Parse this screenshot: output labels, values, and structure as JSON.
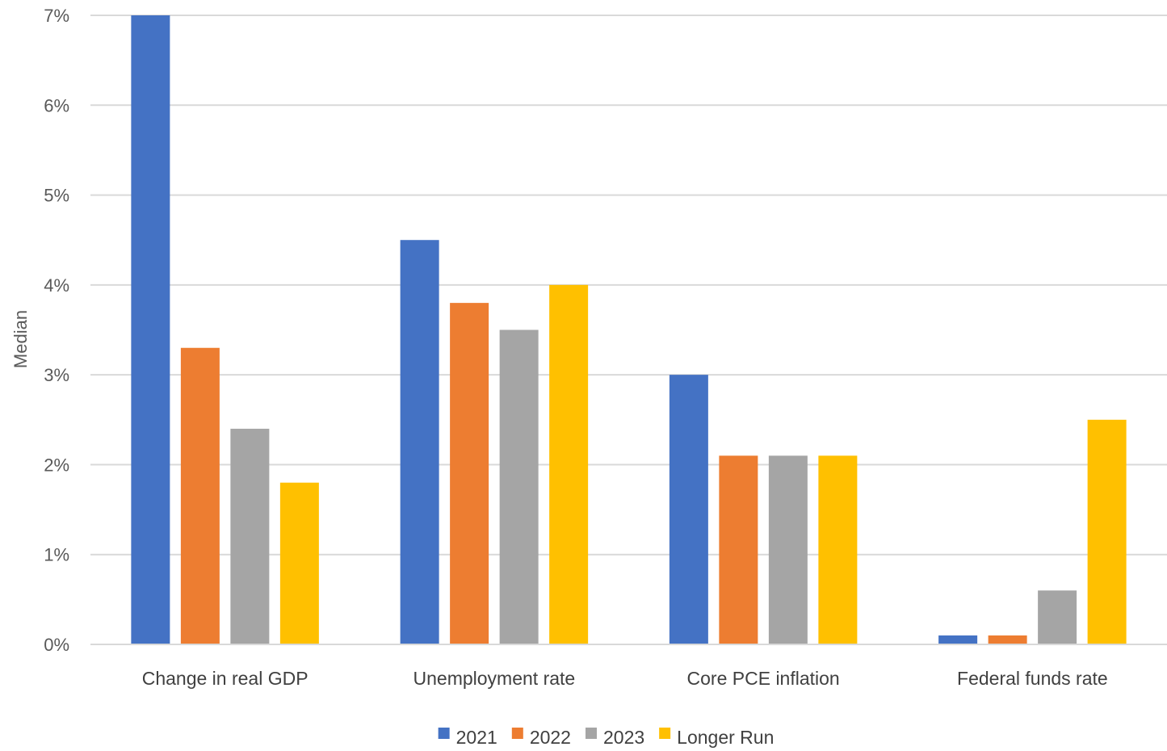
{
  "chart_data": {
    "type": "bar",
    "title": "",
    "xlabel": "",
    "ylabel": "Median",
    "ylim": [
      0,
      7
    ],
    "yticks": [
      "0%",
      "1%",
      "2%",
      "3%",
      "4%",
      "5%",
      "6%",
      "7%"
    ],
    "grid": true,
    "legend_position": "bottom",
    "categories": [
      "Change in real GDP",
      "Unemployment rate",
      "Core PCE inflation",
      "Federal funds rate"
    ],
    "series": [
      {
        "name": "2021",
        "color": "#4472C4",
        "values": [
          7.0,
          4.5,
          3.0,
          0.1
        ]
      },
      {
        "name": "2022",
        "color": "#ED7D31",
        "values": [
          3.3,
          3.8,
          2.1,
          0.1
        ]
      },
      {
        "name": "2023",
        "color": "#A5A5A5",
        "values": [
          2.4,
          3.5,
          2.1,
          0.6
        ]
      },
      {
        "name": "Longer Run",
        "color": "#FFC000",
        "values": [
          1.8,
          4.0,
          2.1,
          2.5
        ]
      }
    ]
  }
}
